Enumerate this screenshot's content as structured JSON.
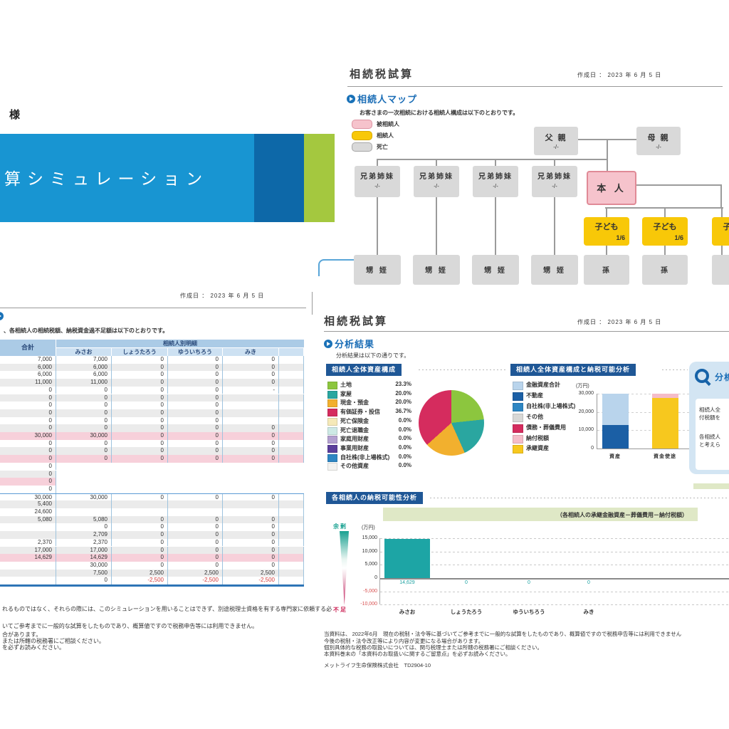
{
  "common": {
    "date_line": "作成日 ： 2023 年 6 月 5 日"
  },
  "cover": {
    "honorific": "様",
    "banner_title": "試算シミュレーション",
    "banner_colors": {
      "light_blue": "#1895d2",
      "dark_blue": "#0d68a8",
      "green": "#a4c83f"
    }
  },
  "heir_map": {
    "title": "相続税試算",
    "section": "相続人マップ",
    "subtitle": "お客さまの一次相続における相続人構成は以下のとおりです。",
    "legend": [
      {
        "label": "被相続人",
        "color": "#f6c3cc",
        "border": "#dd93a2"
      },
      {
        "label": "相続人",
        "color": "#f8c808",
        "border": "#d8a900"
      },
      {
        "label": "死亡",
        "color": "#d9d9d9",
        "border": "#a6a6a6"
      }
    ],
    "tree": {
      "father": "父 親",
      "mother": "母 親",
      "share_none": "-/-",
      "sibling": "兄弟姉妹",
      "self": "本 人",
      "child": "子ども",
      "child_share": "1/6",
      "nephew": "甥 姪",
      "grandchild": "孫"
    }
  },
  "detail_table": {
    "intro": "、各相続人の相続税額、納税資金過不足額は以下のとおりです。",
    "header_total": "合計",
    "header_detail": "相続人別明細",
    "names": [
      "みさお",
      "しょうたろう",
      "ゆういちろう",
      "みき"
    ],
    "rows": [
      {
        "s": "w",
        "c": [
          "7,000",
          "7,000",
          "0",
          "0",
          "0"
        ]
      },
      {
        "s": "g",
        "c": [
          "6,000",
          "6,000",
          "0",
          "0",
          "0"
        ]
      },
      {
        "s": "w",
        "c": [
          "6,000",
          "6,000",
          "0",
          "0",
          "0"
        ]
      },
      {
        "s": "g",
        "c": [
          "11,000",
          "11,000",
          "0",
          "0",
          "0"
        ]
      },
      {
        "s": "w",
        "c": [
          "0",
          "0",
          "0",
          "0",
          "-"
        ]
      },
      {
        "s": "g",
        "c": [
          "0",
          "0",
          "0",
          "0",
          ""
        ]
      },
      {
        "s": "w",
        "c": [
          "0",
          "0",
          "0",
          "0",
          ""
        ]
      },
      {
        "s": "g",
        "c": [
          "0",
          "0",
          "0",
          "0",
          ""
        ]
      },
      {
        "s": "w",
        "c": [
          "0",
          "0",
          "0",
          "0",
          ""
        ]
      },
      {
        "s": "g",
        "c": [
          "0",
          "0",
          "0",
          "0",
          "0"
        ]
      },
      {
        "s": "p",
        "c": [
          "30,000",
          "30,000",
          "0",
          "0",
          "0"
        ]
      },
      {
        "s": "w",
        "c": [
          "0",
          "0",
          "0",
          "0",
          "0"
        ]
      },
      {
        "s": "g",
        "c": [
          "0",
          "0",
          "0",
          "0",
          "0"
        ]
      },
      {
        "s": "p",
        "c": [
          "0",
          "0",
          "0",
          "0",
          "0"
        ]
      },
      {
        "s": "wt",
        "c": [
          "0",
          "",
          "",
          "",
          ""
        ]
      },
      {
        "s": "gt",
        "c": [
          "0",
          "",
          "",
          "",
          ""
        ]
      },
      {
        "s": "pt",
        "c": [
          "0",
          "",
          "",
          "",
          ""
        ]
      },
      {
        "s": "wt",
        "c": [
          "0",
          "",
          "",
          "",
          ""
        ]
      },
      {
        "s": "w2",
        "c": [
          "30,000",
          "30,000",
          "0",
          "0",
          "0"
        ]
      },
      {
        "s": "g",
        "c": [
          "5,400",
          "",
          "",
          "",
          ""
        ]
      },
      {
        "s": "w",
        "c": [
          "24,600",
          "",
          "",
          "",
          ""
        ]
      },
      {
        "s": "g",
        "c": [
          "5,080",
          "5,080",
          "0",
          "0",
          "0"
        ]
      },
      {
        "s": "w",
        "c": [
          "",
          "0",
          "0",
          "0",
          "0"
        ]
      },
      {
        "s": "g",
        "c": [
          "",
          "2,709",
          "0",
          "0",
          "0"
        ]
      },
      {
        "s": "w",
        "c": [
          "2,370",
          "2,370",
          "0",
          "0",
          "0"
        ]
      },
      {
        "s": "g",
        "c": [
          "17,000",
          "17,000",
          "0",
          "0",
          "0"
        ]
      },
      {
        "s": "p",
        "c": [
          "14,629",
          "14,629",
          "0",
          "0",
          "0"
        ]
      },
      {
        "s": "w",
        "c": [
          "",
          "30,000",
          "0",
          "0",
          "0"
        ]
      },
      {
        "s": "g",
        "c": [
          "",
          "7,500",
          "2,500",
          "2,500",
          "2,500"
        ]
      },
      {
        "s": "w",
        "c": [
          "",
          "0",
          "-2,500",
          "-2,500",
          "-2,500"
        ]
      }
    ],
    "footnotes": [
      "れるものではなく、それらの際には、このシミュレーションを用いることはできず、別途税理士資格を有する専門家に依頼する必",
      "いてご参考までに一般的な試算をしたものであり、概算値ですので税務申告等には利用できません。",
      "合があります。",
      "または所轄の税務署にご相談ください。",
      "を必ずお読みください。"
    ]
  },
  "analysis": {
    "title": "相続税試算",
    "section": "分析結果",
    "subtitle": "分析結果は以下の通りです。",
    "composition_header": "相続人全体資産構成",
    "funding_header": "相続人全体資産構成と納税可能分析",
    "per_heir_header": "各相続人の納税可能性分析",
    "band_note": "（各相続人の承継金融資産－葬儀費用－納付税額）",
    "unit": "(万円)",
    "surplus": "余剰",
    "shortage": "不足",
    "panel": {
      "title": "分析",
      "lines": [
        "相続人全",
        "付税額を",
        "各相続人",
        "と考えら"
      ]
    },
    "footnotes": [
      "当資料は、 2022年6月　現在の税制・法令等に基づいてご参考までに一般的な試算をしたものであり、概算値ですので税務申告等には利用できません",
      "今後の税制・法令改正等により内容が変更になる場合があります。",
      "個別具体的な税務の取扱いについては、関与税理士または所轄の税務署にご相談ください。",
      "本資料巻末の「本資料のお取扱いに関するご留意点」を必ずお読みください。"
    ],
    "company": "メットライフ生命保険株式会社　TD2904-10"
  },
  "chart_data": [
    {
      "type": "pie",
      "title": "相続人全体資産構成",
      "labels": [
        "土地",
        "家屋",
        "現金・預金",
        "有価証券・投信",
        "死亡保険金",
        "死亡退職金",
        "家庭用財産",
        "事業用財産",
        "自社株(非上場株式)",
        "その他資産"
      ],
      "values": [
        23.3,
        20.0,
        20.0,
        36.7,
        0.0,
        0.0,
        0.0,
        0.0,
        0.0,
        0.0
      ],
      "unit": "%",
      "colors": [
        "#8cc63e",
        "#2aa6a0",
        "#f2b02e",
        "#d52c5e",
        "#f5e9b8",
        "#cde9e5",
        "#b3a0d0",
        "#5b3e9b",
        "#2e86c3",
        "#f2f2f0"
      ],
      "legend_position": "left"
    },
    {
      "type": "bar",
      "subtype": "stacked",
      "title": "相続人全体資産構成と納税可能分析",
      "categories": [
        "資産",
        "資金使途"
      ],
      "unit": "万円",
      "ylim": [
        0,
        30000
      ],
      "yticks": [
        30000,
        20000,
        10000,
        0
      ],
      "series": [
        {
          "name": "不動産",
          "color": "#1b5fa5",
          "values": [
            13000,
            0
          ]
        },
        {
          "name": "金融資産合計",
          "color": "#b9d4ec",
          "values": [
            17000,
            0
          ]
        },
        {
          "name": "承継資産",
          "color": "#f7c81e",
          "values": [
            0,
            27630
          ]
        },
        {
          "name": "納付税額",
          "color": "#f5bcc8",
          "values": [
            0,
            2370
          ]
        }
      ],
      "legend": [
        {
          "label": "金融資産合計",
          "color": "#b9d4ec"
        },
        {
          "label": "不動産",
          "color": "#1b5fa5"
        },
        {
          "label": "自社株(非上場株式)",
          "color": "#2e86c3"
        },
        {
          "label": "その他",
          "color": "#d8d8d6"
        },
        {
          "label": "債務・葬儀費用",
          "color": "#d52c5e"
        },
        {
          "label": "納付税額",
          "color": "#f5bcc8"
        },
        {
          "label": "承継資産",
          "color": "#f7c81e"
        }
      ]
    },
    {
      "type": "bar",
      "title": "各相続人の納税可能性分析",
      "note": "（各相続人の承継金融資産－葬儀費用－納付税額）",
      "unit": "万円",
      "categories": [
        "みさお",
        "しょうたろう",
        "ゆういちろう",
        "みき"
      ],
      "values": [
        14629,
        0,
        0,
        0
      ],
      "ylim": [
        -10000,
        15000
      ],
      "yticks": [
        15000,
        10000,
        5000,
        0,
        -5000,
        -10000
      ],
      "bar_color": "#1da5a5",
      "value_label_color": "#1ba0a0"
    }
  ]
}
